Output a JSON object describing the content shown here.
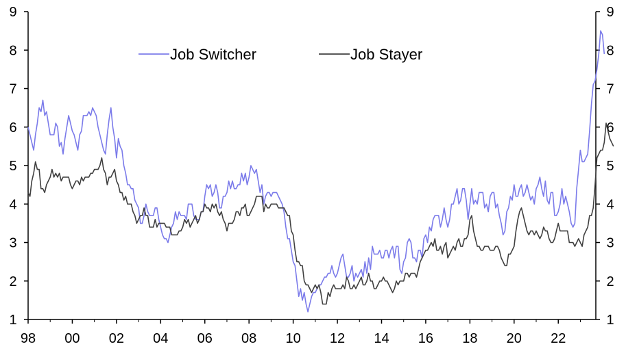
{
  "chart_data": {
    "type": "line",
    "x_start": 1998.0,
    "x_step": 0.0833333,
    "xlim": [
      1998,
      2023.7
    ],
    "ylim": [
      1,
      9
    ],
    "x_ticks": [
      {
        "value": 1998,
        "label": "98"
      },
      {
        "value": 2000,
        "label": "00"
      },
      {
        "value": 2002,
        "label": "02"
      },
      {
        "value": 2004,
        "label": "04"
      },
      {
        "value": 2006,
        "label": "06"
      },
      {
        "value": 2008,
        "label": "08"
      },
      {
        "value": 2010,
        "label": "10"
      },
      {
        "value": 2012,
        "label": "12"
      },
      {
        "value": 2014,
        "label": "14"
      },
      {
        "value": 2016,
        "label": "16"
      },
      {
        "value": 2018,
        "label": "18"
      },
      {
        "value": 2020,
        "label": "20"
      },
      {
        "value": 2022,
        "label": "22"
      }
    ],
    "y_ticks": [
      "1",
      "2",
      "3",
      "4",
      "5",
      "6",
      "7",
      "8",
      "9"
    ],
    "grid": false,
    "legend_position": "top-left",
    "series": [
      {
        "name": "Job Switcher",
        "color": "#7b7bea",
        "values": [
          6.0,
          5.8,
          5.6,
          5.4,
          5.8,
          6.1,
          6.5,
          6.4,
          6.7,
          6.3,
          6.4,
          6.1,
          5.8,
          5.8,
          5.8,
          6.1,
          6.0,
          5.5,
          5.6,
          5.3,
          5.7,
          6.0,
          6.3,
          6.1,
          5.9,
          5.8,
          5.6,
          5.4,
          5.8,
          5.9,
          6.3,
          6.3,
          6.3,
          6.4,
          6.3,
          6.5,
          6.4,
          6.3,
          6.0,
          5.8,
          5.6,
          5.4,
          5.3,
          5.8,
          6.2,
          6.5,
          6.0,
          5.7,
          5.2,
          5.7,
          5.5,
          5.4,
          5.0,
          4.8,
          4.5,
          4.5,
          4.4,
          4.4,
          4.1,
          4.0,
          3.9,
          3.5,
          3.5,
          3.7,
          4.0,
          3.8,
          3.7,
          3.7,
          3.7,
          3.9,
          3.9,
          3.6,
          3.4,
          3.2,
          3.1,
          3.1,
          3.0,
          3.2,
          3.4,
          3.5,
          3.8,
          3.6,
          3.8,
          3.7,
          3.7,
          3.7,
          3.6,
          4.0,
          4.0,
          4.0,
          3.7,
          3.6,
          3.6,
          3.6,
          3.8,
          3.8,
          4.2,
          4.5,
          4.4,
          4.5,
          4.2,
          4.3,
          4.5,
          4.3,
          3.9,
          3.9,
          4.2,
          4.2,
          4.3,
          4.6,
          4.4,
          4.6,
          4.4,
          4.4,
          4.5,
          4.5,
          4.8,
          4.6,
          4.8,
          4.5,
          4.7,
          5.0,
          4.9,
          4.8,
          4.9,
          4.6,
          4.3,
          4.5,
          4.0,
          4.2,
          4.3,
          4.3,
          4.2,
          4.3,
          4.3,
          4.3,
          4.2,
          4.1,
          4.0,
          3.8,
          3.4,
          3.1,
          3.1,
          2.8,
          2.5,
          2.4,
          2.0,
          1.6,
          1.8,
          1.5,
          1.7,
          1.4,
          1.2,
          1.4,
          1.6,
          1.7,
          1.7,
          1.8,
          1.9,
          1.9,
          2.0,
          2.1,
          2.1,
          2.2,
          2.2,
          2.4,
          2.2,
          2.1,
          2.2,
          2.4,
          2.6,
          2.7,
          2.4,
          2.1,
          2.1,
          2.2,
          2.4,
          2.0,
          2.2,
          2.1,
          2.2,
          2.3,
          2.1,
          2.5,
          2.2,
          2.6,
          2.3,
          2.9,
          2.7,
          2.7,
          2.7,
          2.8,
          2.6,
          2.6,
          2.8,
          2.8,
          2.6,
          2.8,
          2.9,
          2.6,
          2.9,
          2.9,
          2.3,
          2.2,
          2.5,
          2.6,
          3.0,
          3.1,
          3.0,
          2.6,
          2.6,
          2.5,
          2.8,
          2.8,
          2.6,
          3.1,
          3.2,
          3.0,
          3.4,
          3.3,
          3.6,
          3.7,
          3.7,
          3.7,
          3.4,
          3.6,
          3.9,
          3.6,
          3.4,
          3.6,
          4.0,
          4.0,
          4.2,
          4.4,
          4.0,
          4.1,
          4.4,
          4.4,
          4.1,
          3.6,
          4.0,
          4.4,
          4.0,
          4.1,
          4.0,
          4.3,
          4.3,
          4.3,
          3.9,
          4.0,
          3.8,
          4.2,
          4.3,
          4.3,
          3.9,
          4.0,
          3.7,
          3.5,
          3.2,
          3.3,
          3.8,
          3.9,
          4.2,
          4.1,
          4.5,
          4.2,
          4.2,
          4.4,
          4.5,
          4.2,
          4.3,
          4.5,
          4.3,
          4.1,
          4.2,
          4.0,
          4.4,
          4.5,
          4.7,
          4.4,
          4.2,
          4.6,
          4.1,
          4.0,
          4.3,
          4.3,
          3.7,
          3.7,
          3.8,
          4.0,
          4.4,
          4.0,
          4.2,
          4.0,
          3.8,
          3.5,
          3.4,
          3.5,
          4.4,
          4.9,
          5.4,
          5.1,
          5.1,
          5.2,
          5.3,
          5.9,
          6.6,
          7.1,
          7.2,
          7.5,
          7.9,
          8.5,
          8.4,
          7.9
        ]
      },
      {
        "name": "Job Stayer",
        "color": "#404040",
        "values": [
          4.3,
          4.2,
          4.6,
          4.8,
          5.1,
          4.9,
          4.9,
          4.4,
          4.4,
          4.3,
          4.5,
          4.6,
          4.7,
          4.9,
          4.7,
          4.8,
          4.7,
          4.8,
          4.6,
          4.7,
          4.7,
          4.7,
          4.7,
          4.5,
          4.4,
          4.5,
          4.6,
          4.6,
          4.5,
          4.7,
          4.6,
          4.7,
          4.7,
          4.7,
          4.8,
          4.8,
          4.9,
          4.9,
          4.9,
          5.0,
          5.2,
          4.9,
          4.8,
          4.5,
          4.7,
          4.7,
          4.8,
          4.9,
          4.6,
          4.5,
          4.3,
          4.3,
          4.1,
          4.2,
          4.0,
          4.0,
          4.0,
          3.8,
          3.7,
          3.5,
          3.6,
          3.7,
          3.7,
          3.9,
          3.7,
          3.7,
          3.4,
          3.4,
          3.4,
          3.6,
          3.4,
          3.5,
          3.5,
          3.5,
          3.5,
          3.4,
          3.4,
          3.4,
          3.2,
          3.2,
          3.2,
          3.2,
          3.3,
          3.3,
          3.4,
          3.6,
          3.5,
          3.6,
          3.4,
          3.5,
          3.6,
          3.7,
          3.5,
          3.6,
          3.8,
          3.8,
          4.0,
          3.9,
          3.9,
          3.8,
          4.0,
          3.9,
          4.0,
          3.8,
          3.7,
          3.8,
          3.6,
          3.5,
          3.3,
          3.5,
          3.5,
          3.5,
          3.6,
          3.8,
          3.8,
          3.7,
          3.9,
          3.9,
          4.0,
          3.7,
          3.7,
          3.8,
          3.9,
          4.0,
          4.2,
          4.2,
          4.2,
          4.2,
          3.8,
          4.0,
          3.9,
          3.9,
          4.0,
          4.0,
          4.0,
          4.0,
          3.9,
          3.9,
          3.9,
          3.9,
          3.8,
          3.7,
          3.7,
          3.3,
          3.2,
          2.8,
          2.5,
          2.5,
          2.4,
          2.4,
          2.0,
          1.9,
          1.9,
          1.8,
          1.7,
          1.8,
          1.9,
          1.8,
          1.9,
          1.7,
          1.4,
          1.4,
          1.4,
          1.7,
          1.6,
          1.8,
          1.9,
          1.8,
          1.8,
          1.8,
          1.8,
          1.9,
          1.8,
          2.1,
          2.0,
          1.8,
          1.8,
          1.9,
          1.8,
          1.9,
          2.0,
          2.1,
          1.9,
          1.9,
          2.0,
          2.2,
          2.0,
          2.0,
          1.8,
          1.8,
          1.9,
          2.0,
          2.0,
          2.1,
          2.0,
          2.0,
          1.9,
          1.8,
          1.7,
          1.8,
          2.0,
          1.9,
          2.0,
          2.0,
          2.0,
          2.2,
          2.2,
          2.1,
          2.2,
          2.2,
          2.2,
          2.1,
          2.3,
          2.5,
          2.6,
          2.7,
          2.8,
          2.8,
          2.9,
          3.0,
          2.9,
          3.1,
          2.8,
          2.8,
          2.9,
          2.7,
          2.9,
          3.0,
          2.6,
          2.7,
          2.8,
          2.9,
          2.8,
          3.0,
          3.1,
          2.9,
          2.9,
          3.1,
          3.1,
          3.2,
          3.6,
          3.7,
          3.3,
          3.1,
          2.9,
          2.9,
          2.8,
          2.8,
          2.9,
          2.9,
          2.9,
          2.8,
          2.8,
          2.8,
          2.9,
          2.9,
          2.8,
          2.6,
          2.5,
          2.4,
          2.4,
          2.7,
          2.7,
          2.8,
          2.9,
          3.3,
          3.6,
          3.8,
          3.9,
          3.7,
          3.5,
          3.3,
          3.2,
          3.3,
          3.3,
          3.2,
          3.3,
          3.2,
          3.1,
          3.2,
          3.4,
          3.3,
          3.3,
          3.1,
          3.0,
          3.0,
          3.1,
          3.3,
          3.5,
          3.3,
          3.3,
          3.3,
          3.3,
          3.3,
          3.0,
          3.0,
          3.0,
          2.9,
          3.0,
          3.1,
          3.0,
          2.9,
          3.2,
          3.3,
          3.4,
          3.7,
          3.7,
          3.9,
          4.5,
          5.2,
          5.3,
          5.4,
          5.4,
          5.6,
          6.1,
          5.9,
          5.7,
          5.6,
          5.5
        ]
      }
    ]
  }
}
